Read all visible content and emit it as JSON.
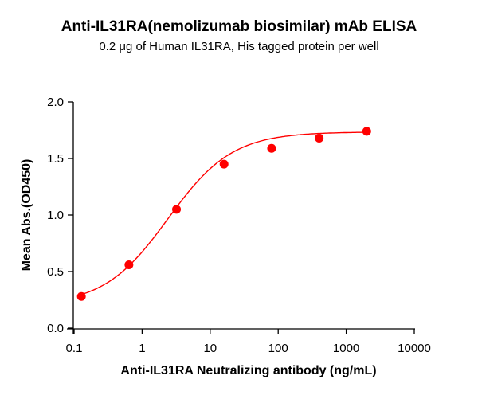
{
  "chart_data": {
    "type": "scatter",
    "title": "Anti-IL31RA(nemolizumab biosimilar) mAb ELISA",
    "subtitle": "0.2 μg of Human IL31RA, His tagged protein per well",
    "xlabel": "Anti-IL31RA Neutralizing antibody (ng/mL)",
    "ylabel": "Mean Abs.(OD450)",
    "xscale": "log",
    "xlim": [
      0.1,
      10000
    ],
    "ylim": [
      0,
      2.0
    ],
    "xticks": [
      "0.1",
      "1",
      "10",
      "100",
      "1000",
      "10000"
    ],
    "yticks": [
      "0.0",
      "0.5",
      "1.0",
      "1.5",
      "2.0"
    ],
    "grid": false,
    "color": "#ff0000",
    "x": [
      0.128,
      0.64,
      3.2,
      16,
      80,
      400,
      2000
    ],
    "y": [
      0.28,
      0.56,
      1.05,
      1.45,
      1.59,
      1.68,
      1.74
    ],
    "fit": "four-parameter logistic curve"
  }
}
